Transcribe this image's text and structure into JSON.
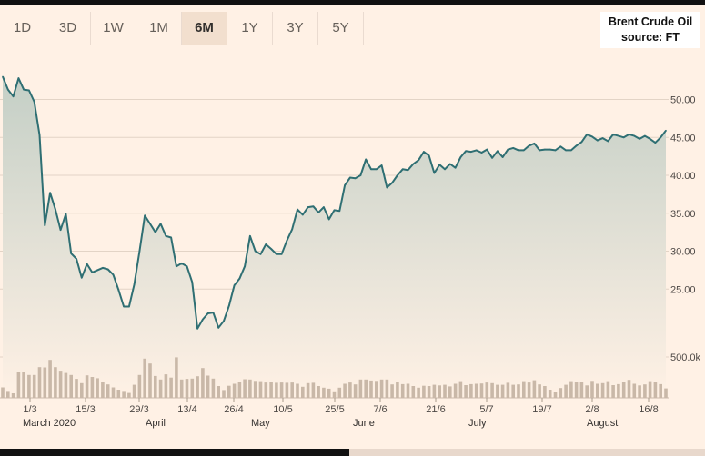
{
  "tabs": [
    "1D",
    "3D",
    "1W",
    "1M",
    "6M",
    "1Y",
    "3Y",
    "5Y"
  ],
  "active_tab": "6M",
  "legend": {
    "line1": "Brent Crude Oil",
    "line2": "source: FT"
  },
  "colors": {
    "line": "#2f6f73",
    "area_top": "#c4cfc6",
    "area_bottom": "#fff1e5",
    "volume": "#c9b8a8",
    "grid": "#e3d4c6",
    "background": "#fff1e5"
  },
  "chart_data": {
    "type": "area",
    "ylim": [
      20,
      55
    ],
    "yticks": [
      25,
      30,
      35,
      40,
      45,
      50
    ],
    "ytick_labels": [
      "25.00",
      "30.00",
      "35.00",
      "40.00",
      "45.00",
      "50.00"
    ],
    "volume_tick_label": "500.0k",
    "date_ticks": [
      "1/3",
      "15/3",
      "29/3",
      "13/4",
      "26/4",
      "10/5",
      "25/5",
      "7/6",
      "21/6",
      "5/7",
      "19/7",
      "2/8",
      "16/8"
    ],
    "month_labels": [
      "March 2020",
      "April",
      "May",
      "June",
      "July",
      "August"
    ],
    "price": [
      53.0,
      51.3,
      50.4,
      52.8,
      51.3,
      51.2,
      49.7,
      45.3,
      33.4,
      37.7,
      35.5,
      32.8,
      34.9,
      29.7,
      29.0,
      26.5,
      28.3,
      27.2,
      27.5,
      27.8,
      27.6,
      26.9,
      24.9,
      22.7,
      22.7,
      25.6,
      30.0,
      34.7,
      33.6,
      32.5,
      33.6,
      32.0,
      31.8,
      28.0,
      28.4,
      28.0,
      25.9,
      19.8,
      21.0,
      21.8,
      21.9,
      19.9,
      20.8,
      22.8,
      25.5,
      26.4,
      28.0,
      32.0,
      30.0,
      29.6,
      30.9,
      30.3,
      29.6,
      29.6,
      31.4,
      32.9,
      35.5,
      34.8,
      35.8,
      35.9,
      35.1,
      35.8,
      34.2,
      35.4,
      35.3,
      38.7,
      39.7,
      39.6,
      40.0,
      42.1,
      40.8,
      40.8,
      41.3,
      38.4,
      39.0,
      40.0,
      40.8,
      40.7,
      41.5,
      42.0,
      43.1,
      42.6,
      40.3,
      41.4,
      40.8,
      41.5,
      41.0,
      42.4,
      43.2,
      43.1,
      43.3,
      43.0,
      43.4,
      42.3,
      43.2,
      42.4,
      43.4,
      43.6,
      43.3,
      43.3,
      43.9,
      44.2,
      43.3,
      43.4,
      43.4,
      43.3,
      43.8,
      43.3,
      43.3,
      43.9,
      44.4,
      45.4,
      45.1,
      44.6,
      44.9,
      44.5,
      45.4,
      45.2,
      45.0,
      45.4,
      45.2,
      44.8,
      45.2,
      44.8,
      44.3,
      45.0,
      45.9
    ],
    "volume": [
      0.32,
      0.21,
      0.14,
      0.8,
      0.79,
      0.7,
      0.7,
      0.94,
      0.93,
      1.16,
      0.94,
      0.83,
      0.76,
      0.7,
      0.58,
      0.45,
      0.69,
      0.64,
      0.6,
      0.48,
      0.41,
      0.32,
      0.25,
      0.21,
      0.15,
      0.4,
      0.7,
      1.2,
      1.05,
      0.67,
      0.56,
      0.72,
      0.62,
      1.24,
      0.56,
      0.58,
      0.59,
      0.66,
      0.91,
      0.68,
      0.59,
      0.36,
      0.24,
      0.37,
      0.43,
      0.49,
      0.57,
      0.56,
      0.52,
      0.51,
      0.47,
      0.49,
      0.46,
      0.47,
      0.46,
      0.47,
      0.43,
      0.34,
      0.45,
      0.46,
      0.36,
      0.31,
      0.28,
      0.2,
      0.31,
      0.43,
      0.47,
      0.41,
      0.56,
      0.56,
      0.53,
      0.52,
      0.56,
      0.56,
      0.41,
      0.5,
      0.42,
      0.43,
      0.36,
      0.31,
      0.37,
      0.36,
      0.4,
      0.38,
      0.4,
      0.35,
      0.43,
      0.51,
      0.39,
      0.42,
      0.43,
      0.44,
      0.47,
      0.45,
      0.4,
      0.4,
      0.46,
      0.4,
      0.41,
      0.51,
      0.47,
      0.54,
      0.41,
      0.36,
      0.25,
      0.19,
      0.3,
      0.4,
      0.51,
      0.49,
      0.5,
      0.38,
      0.52,
      0.43,
      0.45,
      0.51,
      0.39,
      0.42,
      0.5,
      0.55,
      0.43,
      0.38,
      0.41,
      0.51,
      0.48,
      0.42,
      0.29
    ]
  }
}
